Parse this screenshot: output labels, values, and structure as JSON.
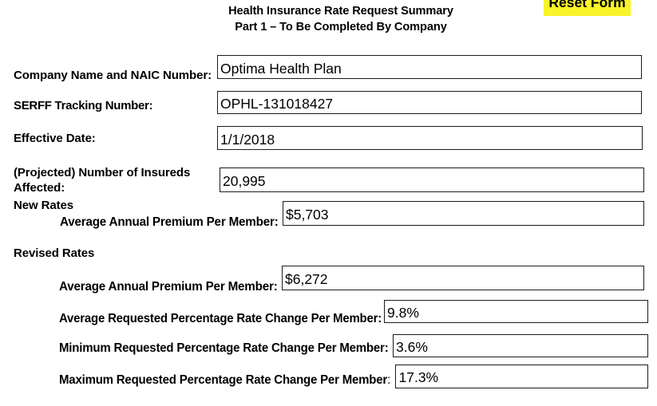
{
  "header": {
    "title_line1": "Health Insurance Rate Request Summary",
    "title_line2": "Part 1 – To Be Completed By Company",
    "reset_button_label": "Reset Form",
    "reset_button_color": "#f9f32a"
  },
  "form": {
    "fields": [
      {
        "label": "Company Name and NAIC Number:",
        "value": "Optima Health Plan"
      },
      {
        "label": "SERFF Tracking Number:",
        "value": "OPHL-131018427"
      },
      {
        "label": "Effective Date:",
        "value": "1/1/2018"
      },
      {
        "label": "(Projected) Number of Insureds Affected:",
        "value": "20,995"
      }
    ],
    "new_rates": {
      "heading": "New Rates",
      "fields": [
        {
          "label": "Average Annual Premium Per Member:",
          "value": "$5,703"
        }
      ]
    },
    "revised_rates": {
      "heading": "Revised Rates",
      "fields": [
        {
          "label": "Average Annual Premium Per Member:",
          "value": "$6,272"
        },
        {
          "label": "Average Requested Percentage Rate Change Per Member:",
          "value": "9.8%"
        },
        {
          "label": "Minimum Requested Percentage Rate Change Per Member:",
          "value": "3.6%"
        },
        {
          "label": "Maximum Requested Percentage Rate Change Per Member",
          "label_colon": ":",
          "value": "17.3%"
        }
      ]
    }
  }
}
